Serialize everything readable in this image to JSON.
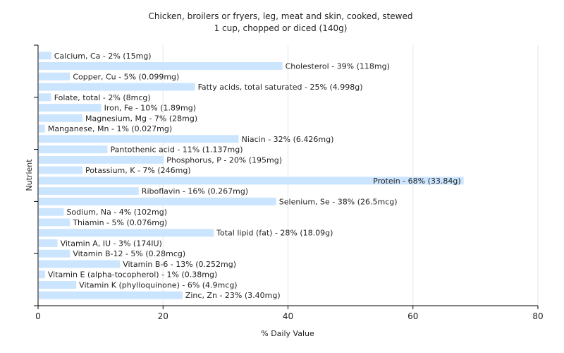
{
  "chart_data": {
    "type": "bar",
    "orientation": "horizontal",
    "title": "Chicken, broilers or fryers, leg, meat and skin, cooked, stewed",
    "subtitle": "1 cup, chopped or diced (140g)",
    "xlabel": "% Daily Value",
    "ylabel": "Nutrient",
    "xlim": [
      0,
      80
    ],
    "xticks": [
      0,
      20,
      40,
      60,
      80
    ],
    "grid": true,
    "bar_color": "#cce5ff",
    "categories": [
      "Calcium, Ca",
      "Cholesterol",
      "Copper, Cu",
      "Fatty acids, total saturated",
      "Folate, total",
      "Iron, Fe",
      "Magnesium, Mg",
      "Manganese, Mn",
      "Niacin",
      "Pantothenic acid",
      "Phosphorus, P",
      "Potassium, K",
      "Protein",
      "Riboflavin",
      "Selenium, Se",
      "Sodium, Na",
      "Thiamin",
      "Total lipid (fat)",
      "Vitamin A, IU",
      "Vitamin B-12",
      "Vitamin B-6",
      "Vitamin E (alpha-tocopherol)",
      "Vitamin K (phylloquinone)",
      "Zinc, Zn"
    ],
    "values": [
      2,
      39,
      5,
      25,
      2,
      10,
      7,
      1,
      32,
      11,
      20,
      7,
      68,
      16,
      38,
      4,
      5,
      28,
      3,
      5,
      13,
      1,
      6,
      23
    ],
    "labels": [
      "Calcium, Ca - 2% (15mg)",
      "Cholesterol - 39% (118mg)",
      "Copper, Cu - 5% (0.099mg)",
      "Fatty acids, total saturated - 25% (4.998g)",
      "Folate, total - 2% (8mcg)",
      "Iron, Fe - 10% (1.89mg)",
      "Magnesium, Mg - 7% (28mg)",
      "Manganese, Mn - 1% (0.027mg)",
      "Niacin - 32% (6.426mg)",
      "Pantothenic acid - 11% (1.137mg)",
      "Phosphorus, P - 20% (195mg)",
      "Potassium, K - 7% (246mg)",
      "Protein - 68% (33.84g)",
      "Riboflavin - 16% (0.267mg)",
      "Selenium, Se - 38% (26.5mcg)",
      "Sodium, Na - 4% (102mg)",
      "Thiamin - 5% (0.076mg)",
      "Total lipid (fat) - 28% (18.09g)",
      "Vitamin A, IU - 3% (174IU)",
      "Vitamin B-12 - 5% (0.28mcg)",
      "Vitamin B-6 - 13% (0.252mg)",
      "Vitamin E (alpha-tocopherol) - 1% (0.38mg)",
      "Vitamin K (phylloquinone) - 6% (4.9mcg)",
      "Zinc, Zn - 23% (3.40mg)"
    ]
  }
}
